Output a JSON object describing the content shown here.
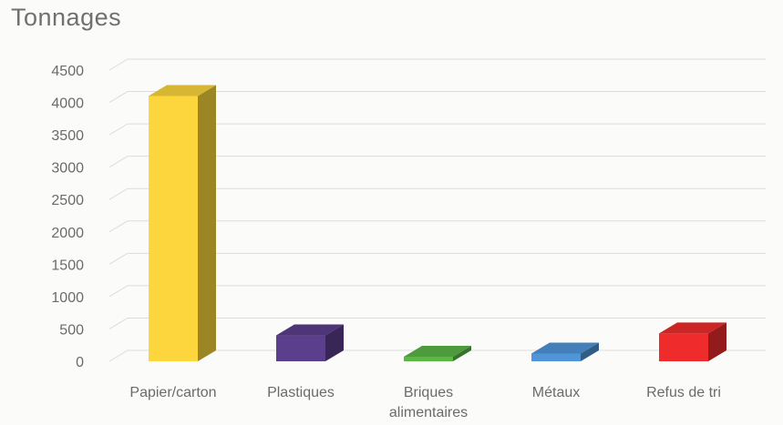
{
  "chart_data": {
    "type": "bar",
    "title": "Tonnages",
    "xlabel": "",
    "ylabel": "",
    "categories": [
      "Papier/carton",
      "Plastiques",
      "Briques alimentaires",
      "Métaux",
      "Refus de tri"
    ],
    "category_lines": [
      [
        "Papier/carton"
      ],
      [
        "Plastiques"
      ],
      [
        "Briques",
        "alimentaires"
      ],
      [
        "Métaux"
      ],
      [
        "Refus de tri"
      ]
    ],
    "values": [
      4100,
      400,
      70,
      120,
      430
    ],
    "colors": [
      "#fcd63c",
      "#5b3e8c",
      "#5bb646",
      "#4f95d8",
      "#ef2b2b"
    ],
    "ylim": [
      0,
      4500
    ],
    "yticks": [
      "0",
      "500",
      "1000",
      "1500",
      "2000",
      "2500",
      "3000",
      "3500",
      "4000",
      "4500"
    ],
    "grid": true,
    "style": "3d-column"
  }
}
